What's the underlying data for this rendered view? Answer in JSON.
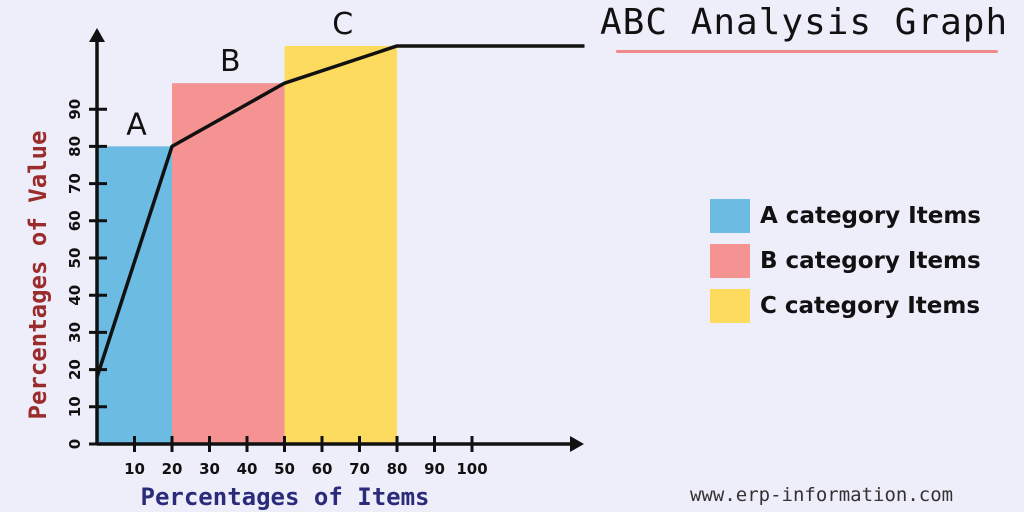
{
  "page": {
    "title": "ABC Analysis Graph",
    "watermark": "www.erp-information.com"
  },
  "colors": {
    "background": "#eeedfa",
    "A": "#6bbbe3",
    "B": "#f59393",
    "C": "#fcdb5f",
    "axis": "#111111",
    "xlabel": "#2b2b7c",
    "ylabel": "#9a2c2c",
    "underline": "#f08a8a"
  },
  "legend": [
    {
      "label": "A category Items",
      "color": "#6bbbe3"
    },
    {
      "label": "B category Items",
      "color": "#f59393"
    },
    {
      "label": "C category Items",
      "color": "#fcdb5f"
    }
  ],
  "chart_data": {
    "type": "bar",
    "title": "ABC Analysis Graph",
    "xlabel": "Percentages of Items",
    "ylabel": "Percentages of Value",
    "x_ticks": [
      10,
      20,
      30,
      40,
      50,
      60,
      70,
      80,
      90,
      100
    ],
    "y_ticks": [
      0,
      10,
      20,
      30,
      40,
      50,
      60,
      70,
      80,
      90
    ],
    "bars": [
      {
        "label": "A",
        "x_start": 0,
        "x_end": 20,
        "value": 80,
        "color": "#6bbbe3"
      },
      {
        "label": "B",
        "x_start": 20,
        "x_end": 50,
        "value": 97,
        "color": "#f59393"
      },
      {
        "label": "C",
        "x_start": 50,
        "x_end": 80,
        "value": 107,
        "color": "#fcdb5f"
      }
    ],
    "line": {
      "x": [
        0,
        20,
        50,
        80,
        130
      ],
      "y": [
        18,
        80,
        97,
        107,
        107
      ]
    },
    "legend_position": "right",
    "grid": false
  }
}
